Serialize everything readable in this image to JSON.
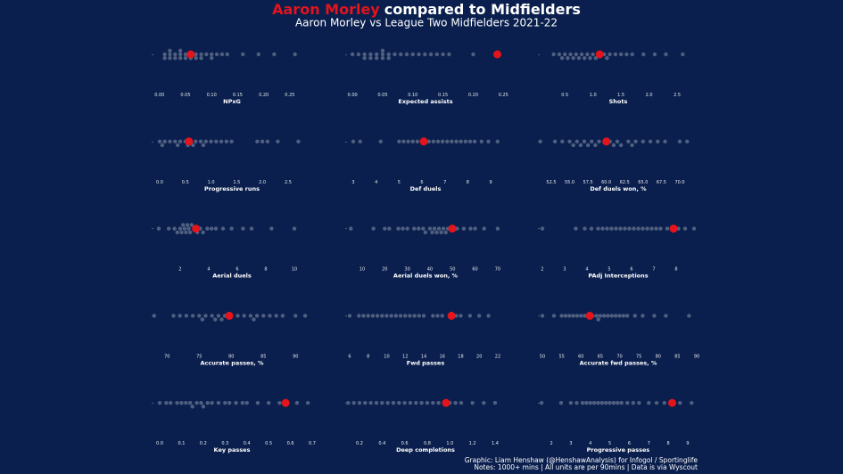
{
  "header": {
    "name": "Aaron Morley",
    "rest": "compared to Midfielders",
    "subtitle": "Aaron Morley vs League Two Midfielders 2021-22"
  },
  "footer": [
    "Graphic: Liam Henshaw (@HenshawAnalysis) for Infogol / Sportinglife",
    "Notes: 1000+ mins | All units are per 90mins | Data is via Wyscout"
  ],
  "chart_data": [
    {
      "type": "beeswarm",
      "xlabel": "NPxG",
      "xlim": [
        -0.015,
        0.293
      ],
      "color": "#4f5f80",
      "highlight_color": "#e3141b",
      "xticks": [
        {
          "value": 0,
          "label": "0.00"
        },
        {
          "value": 0.05,
          "label": "0.05"
        },
        {
          "value": 0.1,
          "label": "0.10"
        },
        {
          "value": 0.15,
          "label": "0.15"
        },
        {
          "value": 0.2,
          "label": "0.20"
        },
        {
          "value": 0.25,
          "label": "0.25"
        }
      ],
      "values": [
        0.01,
        0.01,
        0.02,
        0.02,
        0.02,
        0.03,
        0.03,
        0.04,
        0.04,
        0.04,
        0.05,
        0.05,
        0.06,
        0.06,
        0.07,
        0.07,
        0.08,
        0.08,
        0.09,
        0.1,
        0.1,
        0.11,
        0.12,
        0.13,
        0.16,
        0.19,
        0.22,
        0.26
      ],
      "highlight": 0.06
    },
    {
      "type": "beeswarm",
      "xlabel": "Expected assists",
      "xlim": [
        -0.012,
        0.254
      ],
      "color": "#4f5f80",
      "highlight_color": "#e3141b",
      "xticks": [
        {
          "value": 0,
          "label": "0.00"
        },
        {
          "value": 0.05,
          "label": "0.05"
        },
        {
          "value": 0.1,
          "label": "0.10"
        },
        {
          "value": 0.15,
          "label": "0.15"
        },
        {
          "value": 0.2,
          "label": "0.20"
        },
        {
          "value": 0.25,
          "label": "0.25"
        }
      ],
      "values": [
        0.0,
        0.01,
        0.02,
        0.02,
        0.03,
        0.03,
        0.04,
        0.04,
        0.05,
        0.05,
        0.05,
        0.06,
        0.06,
        0.07,
        0.08,
        0.09,
        0.1,
        0.11,
        0.12,
        0.13,
        0.14,
        0.15,
        0.16,
        0.2
      ],
      "highlight": 0.24
    },
    {
      "type": "beeswarm",
      "xlabel": "Shots",
      "xlim": [
        0.02,
        2.88
      ],
      "color": "#4f5f80",
      "highlight_color": "#e3141b",
      "xticks": [
        0.5,
        {
          "value": 1,
          "label": "1.0"
        },
        1.5,
        {
          "value": 2,
          "label": "2.0"
        },
        2.5
      ],
      "values": [
        0.3,
        0.4,
        0.45,
        0.5,
        0.55,
        0.6,
        0.65,
        0.7,
        0.75,
        0.8,
        0.85,
        0.9,
        0.95,
        1.0,
        1.05,
        1.1,
        1.2,
        1.25,
        1.3,
        1.4,
        1.5,
        1.6,
        1.7,
        1.9,
        2.1,
        2.3,
        2.6
      ],
      "highlight": 1.12
    },
    {
      "type": "beeswarm",
      "xlabel": "Progressive runs",
      "xlim": [
        -0.156,
        2.97
      ],
      "color": "#4f5f80",
      "highlight_color": "#e3141b",
      "xticks": [
        {
          "value": 0,
          "label": "0.0"
        },
        0.5,
        {
          "value": 1,
          "label": "1.0"
        },
        1.5,
        {
          "value": 2,
          "label": "2.0"
        },
        2.5
      ],
      "values": [
        0.0,
        0.05,
        0.1,
        0.2,
        0.3,
        0.35,
        0.4,
        0.5,
        0.55,
        0.6,
        0.65,
        0.7,
        0.8,
        0.85,
        0.9,
        1.0,
        1.1,
        1.2,
        1.3,
        1.4,
        1.9,
        2.0,
        2.1,
        2.3,
        2.7
      ],
      "highlight": 0.57
    },
    {
      "type": "beeswarm",
      "xlabel": "Def duels",
      "xlim": [
        2.65,
        9.66
      ],
      "color": "#4f5f80",
      "highlight_color": "#e3141b",
      "xticks": [
        3,
        4,
        5,
        6,
        7,
        8,
        9
      ],
      "values": [
        3.0,
        3.3,
        4.2,
        5.0,
        5.2,
        5.4,
        5.6,
        5.8,
        6.0,
        6.3,
        6.5,
        6.7,
        6.9,
        7.1,
        7.3,
        7.5,
        7.7,
        7.9,
        8.1,
        8.3,
        8.6,
        8.9,
        9.3
      ],
      "highlight": 6.08
    },
    {
      "type": "beeswarm",
      "xlabel": "Def duels won, %",
      "xlim": [
        50.68,
        72.55
      ],
      "color": "#4f5f80",
      "highlight_color": "#e3141b",
      "xticks": [
        52.5,
        {
          "value": 55,
          "label": "55.0"
        },
        57.5,
        {
          "value": 60,
          "label": "60.0"
        },
        62.5,
        {
          "value": 65,
          "label": "65.0"
        },
        67.5,
        {
          "value": 70,
          "label": "70.0"
        }
      ],
      "values": [
        51,
        53,
        54,
        55,
        55.5,
        56,
        56.5,
        57,
        57.5,
        58,
        58.5,
        59,
        60.5,
        61,
        61.5,
        62,
        63,
        63.5,
        64,
        65,
        66,
        67,
        68,
        70,
        71
      ],
      "highlight": 60.0
    },
    {
      "type": "beeswarm",
      "xlabel": "Aerial duels",
      "xlim": [
        0,
        11.25
      ],
      "color": "#4f5f80",
      "highlight_color": "#e3141b",
      "xticks": [
        2,
        4,
        6,
        8,
        10
      ],
      "values": [
        0.5,
        1.2,
        1.6,
        1.8,
        2.0,
        2.1,
        2.2,
        2.3,
        2.4,
        2.5,
        2.6,
        2.7,
        2.8,
        3.0,
        3.2,
        3.4,
        3.6,
        3.9,
        4.2,
        4.5,
        5.0,
        5.6,
        6.4,
        7.0,
        8.4,
        10.0
      ],
      "highlight": 3.1
    },
    {
      "type": "beeswarm",
      "xlabel": "Aerial duels won, %",
      "xlim": [
        2.5,
        73.6
      ],
      "color": "#4f5f80",
      "highlight_color": "#e3141b",
      "xticks": [
        10,
        20,
        30,
        40,
        50,
        60,
        70
      ],
      "values": [
        5,
        15,
        20,
        22,
        26,
        28,
        30,
        33,
        35,
        37,
        38,
        40,
        41,
        42,
        43,
        44,
        45,
        46,
        47,
        48,
        50,
        52,
        55,
        58,
        60,
        64,
        70
      ],
      "highlight": 49.9
    },
    {
      "type": "beeswarm",
      "xlabel": "PAdj Interceptions",
      "xlim": [
        1.8,
        9.0
      ],
      "color": "#4f5f80",
      "highlight_color": "#e3141b",
      "xticks": [
        2,
        3,
        4,
        5,
        6,
        7,
        8
      ],
      "values": [
        2.0,
        3.5,
        3.9,
        4.2,
        4.5,
        4.7,
        4.9,
        5.1,
        5.3,
        5.5,
        5.7,
        5.9,
        6.1,
        6.3,
        6.5,
        6.7,
        6.9,
        7.1,
        7.3,
        7.6,
        8.1,
        8.4,
        8.8
      ],
      "highlight": 7.88
    },
    {
      "type": "beeswarm",
      "xlabel": "Accurate passes, %",
      "xlim": [
        67.6,
        92.6
      ],
      "color": "#4f5f80",
      "highlight_color": "#e3141b",
      "xticks": [
        70,
        75,
        80,
        85,
        90
      ],
      "values": [
        68,
        71,
        72,
        73,
        74,
        75,
        75.5,
        76,
        77,
        77.5,
        78,
        78.5,
        79,
        80,
        81,
        82,
        83,
        83.5,
        84,
        85,
        86,
        87,
        88,
        90,
        91.5
      ],
      "highlight": 79.7
    },
    {
      "type": "beeswarm",
      "xlabel": "Fwd passes",
      "xlim": [
        5.52,
        22.87
      ],
      "color": "#4f5f80",
      "highlight_color": "#e3141b",
      "xticks": [
        6,
        8,
        10,
        12,
        14,
        16,
        18,
        20,
        22
      ],
      "values": [
        6,
        7,
        7.5,
        8,
        8.5,
        9,
        9.5,
        10,
        10.5,
        11,
        11.5,
        12,
        12.5,
        13,
        13.5,
        14,
        15,
        15.5,
        16,
        17.5,
        18,
        19,
        20,
        21
      ],
      "highlight": 17.0
    },
    {
      "type": "beeswarm",
      "xlabel": "Accurate fwd passes, %",
      "xlim": [
        48.84,
        90.46
      ],
      "color": "#4f5f80",
      "highlight_color": "#e3141b",
      "xticks": [
        50,
        55,
        60,
        65,
        70,
        75,
        80,
        85,
        90
      ],
      "values": [
        50,
        53,
        55,
        56,
        57,
        58,
        59,
        60,
        61,
        62,
        63,
        64,
        64.5,
        65,
        66,
        67,
        68,
        69,
        70,
        71,
        72,
        74,
        76,
        79,
        82,
        88
      ],
      "highlight": 62.3
    },
    {
      "type": "beeswarm",
      "xlabel": "Key passes",
      "xlim": [
        -0.037,
        0.7
      ],
      "color": "#4f5f80",
      "highlight_color": "#e3141b",
      "xticks": [
        {
          "value": 0,
          "label": "0.0"
        },
        0.1,
        0.2,
        0.3,
        0.4,
        0.5,
        0.6,
        0.7
      ],
      "values": [
        0.0,
        0.03,
        0.05,
        0.08,
        0.1,
        0.12,
        0.14,
        0.15,
        0.17,
        0.19,
        0.2,
        0.22,
        0.24,
        0.27,
        0.3,
        0.32,
        0.35,
        0.38,
        0.4,
        0.45,
        0.5,
        0.55,
        0.63,
        0.68
      ],
      "highlight": 0.578
    },
    {
      "type": "beeswarm",
      "xlabel": "Deep completions",
      "xlim": [
        0.074,
        1.495
      ],
      "color": "#4f5f80",
      "highlight_color": "#e3141b",
      "xticks": [
        0.2,
        0.4,
        0.6,
        0.8,
        {
          "value": 1,
          "label": "1.0"
        },
        1.2,
        1.4
      ],
      "values": [
        0.1,
        0.15,
        0.2,
        0.25,
        0.3,
        0.35,
        0.4,
        0.45,
        0.5,
        0.55,
        0.6,
        0.65,
        0.7,
        0.75,
        0.8,
        0.85,
        0.9,
        1.0,
        1.05,
        1.1,
        1.2,
        1.3,
        1.4
      ],
      "highlight": 0.966
    },
    {
      "type": "beeswarm",
      "xlabel": "Progressive passes",
      "xlim": [
        1.31,
        9.55
      ],
      "color": "#4f5f80",
      "highlight_color": "#e3141b",
      "xticks": [
        2,
        3,
        4,
        5,
        6,
        7,
        8,
        9
      ],
      "values": [
        1.5,
        2.5,
        3.0,
        3.3,
        3.6,
        3.8,
        4.0,
        4.2,
        4.4,
        4.6,
        4.8,
        5.0,
        5.2,
        5.4,
        5.6,
        5.9,
        6.2,
        6.5,
        7.0,
        7.4,
        7.8,
        8.6,
        9.2
      ],
      "highlight": 8.2
    }
  ]
}
